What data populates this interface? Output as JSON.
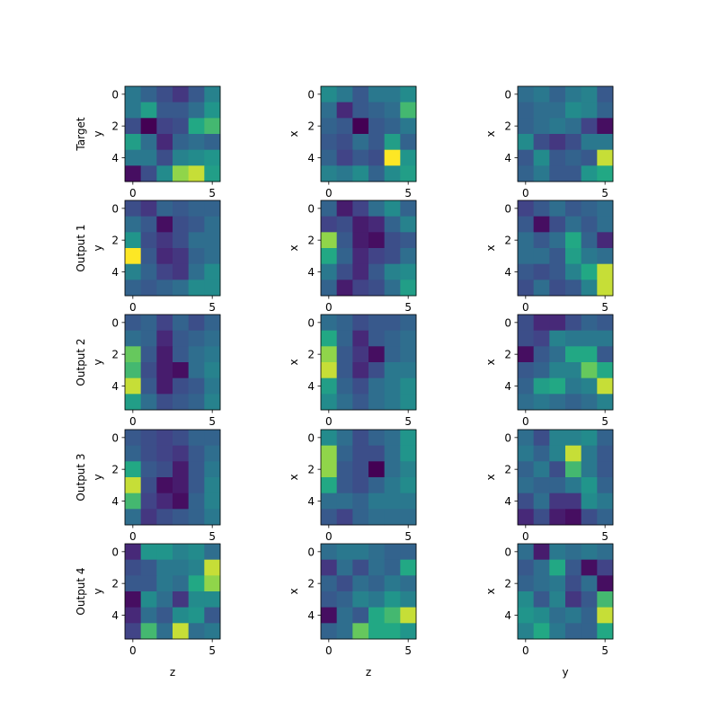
{
  "chart_data": {
    "type": "heatmap",
    "colormap": "viridis",
    "grid": false,
    "row_labels": [
      "Target",
      "Output 1",
      "Output 2",
      "Output 3",
      "Output 4"
    ],
    "columns": [
      {
        "ylabel": "y",
        "xlabel": "z"
      },
      {
        "ylabel": "x",
        "xlabel": "z"
      },
      {
        "ylabel": "x",
        "xlabel": "y"
      }
    ],
    "x_ticks": [
      "0",
      "5"
    ],
    "y_ticks": [
      "0",
      "2",
      "4"
    ],
    "x_tick_values": [
      0,
      5
    ],
    "y_tick_values": [
      0,
      2,
      4
    ],
    "panels": [
      [
        [
          [
            0.5,
            0.4,
            0.3,
            0.2,
            0.35,
            0.55
          ],
          [
            0.5,
            0.7,
            0.35,
            0.35,
            0.45,
            0.65
          ],
          [
            0.3,
            0.0,
            0.25,
            0.3,
            0.75,
            0.8
          ],
          [
            0.7,
            0.45,
            0.15,
            0.4,
            0.45,
            0.4
          ],
          [
            0.5,
            0.5,
            0.3,
            0.55,
            0.6,
            0.65
          ],
          [
            0.05,
            0.3,
            0.6,
            0.9,
            0.95,
            0.7
          ]
        ],
        [
          [
            0.6,
            0.5,
            0.35,
            0.5,
            0.5,
            0.6
          ],
          [
            0.45,
            0.15,
            0.35,
            0.4,
            0.45,
            0.8
          ],
          [
            0.4,
            0.35,
            0.0,
            0.35,
            0.4,
            0.5
          ],
          [
            0.35,
            0.3,
            0.45,
            0.35,
            0.7,
            0.4
          ],
          [
            0.4,
            0.25,
            0.35,
            0.3,
            1.0,
            0.65
          ],
          [
            0.55,
            0.5,
            0.6,
            0.4,
            0.6,
            0.7
          ]
        ],
        [
          [
            0.45,
            0.5,
            0.4,
            0.5,
            0.55,
            0.35
          ],
          [
            0.4,
            0.45,
            0.45,
            0.6,
            0.55,
            0.4
          ],
          [
            0.4,
            0.45,
            0.5,
            0.45,
            0.25,
            0.05
          ],
          [
            0.6,
            0.3,
            0.2,
            0.3,
            0.5,
            0.5
          ],
          [
            0.35,
            0.6,
            0.35,
            0.4,
            0.35,
            0.95
          ],
          [
            0.4,
            0.5,
            0.35,
            0.35,
            0.65,
            0.75
          ]
        ]
      ],
      [
        [
          [
            0.3,
            0.2,
            0.4,
            0.35,
            0.4,
            0.4
          ],
          [
            0.45,
            0.35,
            0.05,
            0.3,
            0.35,
            0.45
          ],
          [
            0.65,
            0.3,
            0.2,
            0.3,
            0.45,
            0.45
          ],
          [
            1.0,
            0.35,
            0.15,
            0.2,
            0.4,
            0.45
          ],
          [
            0.55,
            0.4,
            0.25,
            0.2,
            0.45,
            0.6
          ],
          [
            0.4,
            0.35,
            0.4,
            0.45,
            0.6,
            0.6
          ]
        ],
        [
          [
            0.4,
            0.1,
            0.25,
            0.45,
            0.6,
            0.4
          ],
          [
            0.25,
            0.3,
            0.1,
            0.15,
            0.4,
            0.55
          ],
          [
            0.9,
            0.35,
            0.1,
            0.05,
            0.3,
            0.35
          ],
          [
            0.75,
            0.4,
            0.15,
            0.25,
            0.3,
            0.45
          ],
          [
            0.5,
            0.3,
            0.15,
            0.35,
            0.55,
            0.6
          ],
          [
            0.4,
            0.1,
            0.25,
            0.3,
            0.45,
            0.7
          ]
        ],
        [
          [
            0.25,
            0.35,
            0.45,
            0.35,
            0.4,
            0.45
          ],
          [
            0.35,
            0.05,
            0.3,
            0.45,
            0.35,
            0.45
          ],
          [
            0.45,
            0.35,
            0.45,
            0.75,
            0.4,
            0.15
          ],
          [
            0.45,
            0.45,
            0.35,
            0.7,
            0.5,
            0.45
          ],
          [
            0.35,
            0.3,
            0.35,
            0.55,
            0.75,
            0.95
          ],
          [
            0.3,
            0.45,
            0.3,
            0.35,
            0.55,
            0.95
          ]
        ]
      ],
      [
        [
          [
            0.35,
            0.4,
            0.25,
            0.4,
            0.3,
            0.4
          ],
          [
            0.45,
            0.4,
            0.15,
            0.35,
            0.4,
            0.45
          ],
          [
            0.85,
            0.35,
            0.1,
            0.35,
            0.45,
            0.5
          ],
          [
            0.8,
            0.3,
            0.1,
            0.05,
            0.45,
            0.55
          ],
          [
            0.95,
            0.35,
            0.1,
            0.3,
            0.35,
            0.5
          ],
          [
            0.7,
            0.45,
            0.3,
            0.35,
            0.4,
            0.55
          ]
        ],
        [
          [
            0.45,
            0.4,
            0.3,
            0.35,
            0.35,
            0.4
          ],
          [
            0.75,
            0.4,
            0.15,
            0.35,
            0.4,
            0.45
          ],
          [
            0.9,
            0.35,
            0.2,
            0.05,
            0.4,
            0.45
          ],
          [
            0.95,
            0.35,
            0.15,
            0.3,
            0.5,
            0.5
          ],
          [
            0.7,
            0.4,
            0.3,
            0.45,
            0.5,
            0.6
          ],
          [
            0.6,
            0.45,
            0.35,
            0.45,
            0.5,
            0.6
          ]
        ],
        [
          [
            0.3,
            0.15,
            0.15,
            0.3,
            0.4,
            0.35
          ],
          [
            0.3,
            0.25,
            0.55,
            0.5,
            0.5,
            0.5
          ],
          [
            0.05,
            0.35,
            0.45,
            0.75,
            0.75,
            0.35
          ],
          [
            0.35,
            0.4,
            0.55,
            0.55,
            0.85,
            0.75
          ],
          [
            0.4,
            0.7,
            0.75,
            0.5,
            0.55,
            0.95
          ],
          [
            0.45,
            0.5,
            0.45,
            0.4,
            0.45,
            0.55
          ]
        ]
      ],
      [
        [
          [
            0.35,
            0.3,
            0.25,
            0.3,
            0.4,
            0.4
          ],
          [
            0.4,
            0.3,
            0.25,
            0.2,
            0.35,
            0.45
          ],
          [
            0.75,
            0.35,
            0.3,
            0.1,
            0.35,
            0.5
          ],
          [
            0.95,
            0.3,
            0.05,
            0.1,
            0.35,
            0.55
          ],
          [
            0.8,
            0.25,
            0.15,
            0.05,
            0.4,
            0.55
          ],
          [
            0.45,
            0.2,
            0.3,
            0.35,
            0.4,
            0.5
          ]
        ],
        [
          [
            0.6,
            0.45,
            0.3,
            0.4,
            0.45,
            0.65
          ],
          [
            0.9,
            0.4,
            0.3,
            0.3,
            0.45,
            0.65
          ],
          [
            0.9,
            0.35,
            0.3,
            0.0,
            0.45,
            0.55
          ],
          [
            0.75,
            0.35,
            0.3,
            0.4,
            0.5,
            0.6
          ],
          [
            0.45,
            0.45,
            0.4,
            0.5,
            0.5,
            0.5
          ],
          [
            0.35,
            0.25,
            0.4,
            0.45,
            0.45,
            0.45
          ]
        ],
        [
          [
            0.45,
            0.3,
            0.55,
            0.55,
            0.6,
            0.4
          ],
          [
            0.5,
            0.4,
            0.55,
            0.95,
            0.5,
            0.35
          ],
          [
            0.4,
            0.5,
            0.3,
            0.8,
            0.5,
            0.35
          ],
          [
            0.45,
            0.4,
            0.4,
            0.5,
            0.65,
            0.4
          ],
          [
            0.3,
            0.45,
            0.2,
            0.2,
            0.6,
            0.5
          ],
          [
            0.15,
            0.3,
            0.1,
            0.05,
            0.3,
            0.4
          ]
        ]
      ],
      [
        [
          [
            0.15,
            0.65,
            0.65,
            0.55,
            0.6,
            0.45
          ],
          [
            0.3,
            0.35,
            0.5,
            0.5,
            0.55,
            0.95
          ],
          [
            0.35,
            0.35,
            0.5,
            0.45,
            0.75,
            0.9
          ],
          [
            0.05,
            0.6,
            0.45,
            0.2,
            0.6,
            0.6
          ],
          [
            0.15,
            0.45,
            0.35,
            0.6,
            0.65,
            0.35
          ],
          [
            0.25,
            0.8,
            0.45,
            0.95,
            0.45,
            0.5
          ]
        ],
        [
          [
            0.45,
            0.5,
            0.5,
            0.45,
            0.4,
            0.4
          ],
          [
            0.2,
            0.45,
            0.3,
            0.45,
            0.4,
            0.75
          ],
          [
            0.4,
            0.3,
            0.45,
            0.4,
            0.5,
            0.45
          ],
          [
            0.35,
            0.4,
            0.55,
            0.5,
            0.65,
            0.55
          ],
          [
            0.05,
            0.45,
            0.35,
            0.75,
            0.8,
            0.95
          ],
          [
            0.4,
            0.45,
            0.85,
            0.75,
            0.75,
            0.65
          ]
        ],
        [
          [
            0.45,
            0.1,
            0.5,
            0.45,
            0.5,
            0.45
          ],
          [
            0.35,
            0.45,
            0.75,
            0.35,
            0.05,
            0.25
          ],
          [
            0.4,
            0.45,
            0.5,
            0.3,
            0.45,
            0.05
          ],
          [
            0.6,
            0.35,
            0.55,
            0.2,
            0.35,
            0.8
          ],
          [
            0.65,
            0.6,
            0.45,
            0.5,
            0.4,
            0.95
          ],
          [
            0.55,
            0.75,
            0.5,
            0.4,
            0.4,
            0.75
          ]
        ]
      ]
    ]
  }
}
